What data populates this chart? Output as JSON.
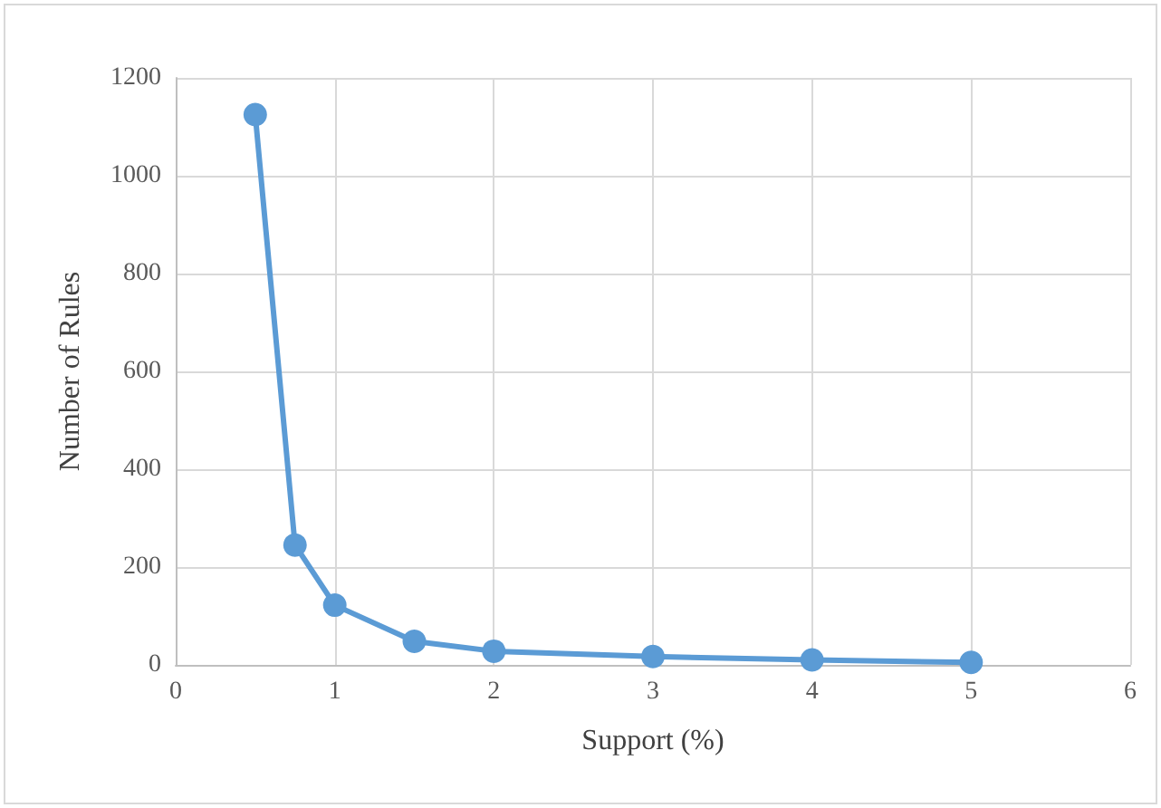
{
  "chart_data": {
    "type": "line",
    "xlabel": "Support (%)",
    "ylabel": "Number of Rules",
    "x": [
      0.5,
      0.75,
      1,
      1.5,
      2,
      3,
      4,
      5
    ],
    "series": [
      {
        "color": "#5b9bd5",
        "values": [
          1125,
          245,
          122,
          48,
          28,
          17,
          10,
          5
        ]
      }
    ],
    "xlim": [
      0,
      6
    ],
    "xticks": [
      0,
      1,
      2,
      3,
      4,
      5,
      6
    ],
    "ylim": [
      0,
      1200
    ],
    "yticks": [
      0,
      200,
      400,
      600,
      800,
      1000,
      1200
    ],
    "grid": true,
    "marker": "circle",
    "line_style": "solid"
  }
}
